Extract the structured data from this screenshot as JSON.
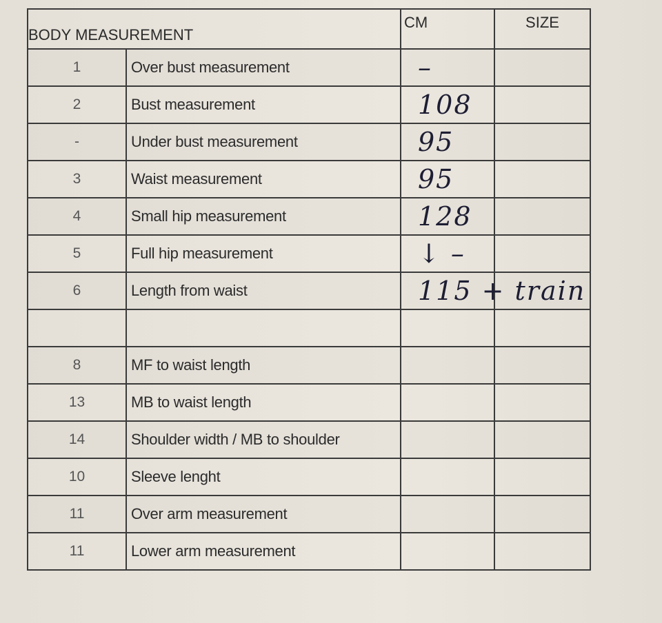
{
  "header": {
    "title": "BODY MEASUREMENT",
    "cm_label": "CM",
    "size_label": "SIZE"
  },
  "rows": [
    {
      "num": "1",
      "label": "Over bust measurement",
      "cm": "–",
      "size": ""
    },
    {
      "num": "2",
      "label": "Bust measurement",
      "cm": "108",
      "size": ""
    },
    {
      "num": "-",
      "label": "Under bust measurement",
      "cm": "95",
      "size": ""
    },
    {
      "num": "3",
      "label": "Waist measurement",
      "cm": "95",
      "size": ""
    },
    {
      "num": "4",
      "label": "Small hip measurement",
      "cm": "128",
      "size": ""
    },
    {
      "num": "5",
      "label": "Full hip measurement",
      "cm": "↓ –",
      "size": ""
    },
    {
      "num": "6",
      "label": "Length from waist",
      "cm": "115 + train",
      "size": ""
    },
    {
      "num": "",
      "label": "",
      "cm": "",
      "size": ""
    },
    {
      "num": "8",
      "label": "MF to waist length",
      "cm": "",
      "size": ""
    },
    {
      "num": "13",
      "label": "MB to waist length",
      "cm": "",
      "size": ""
    },
    {
      "num": "14",
      "label": "Shoulder width / MB to shoulder",
      "cm": "",
      "size": ""
    },
    {
      "num": "10",
      "label": "Sleeve lenght",
      "cm": "",
      "size": ""
    },
    {
      "num": "11",
      "label": "Over arm measurement",
      "cm": "",
      "size": ""
    },
    {
      "num": "11",
      "label": "Lower arm measurement",
      "cm": "",
      "size": ""
    }
  ]
}
